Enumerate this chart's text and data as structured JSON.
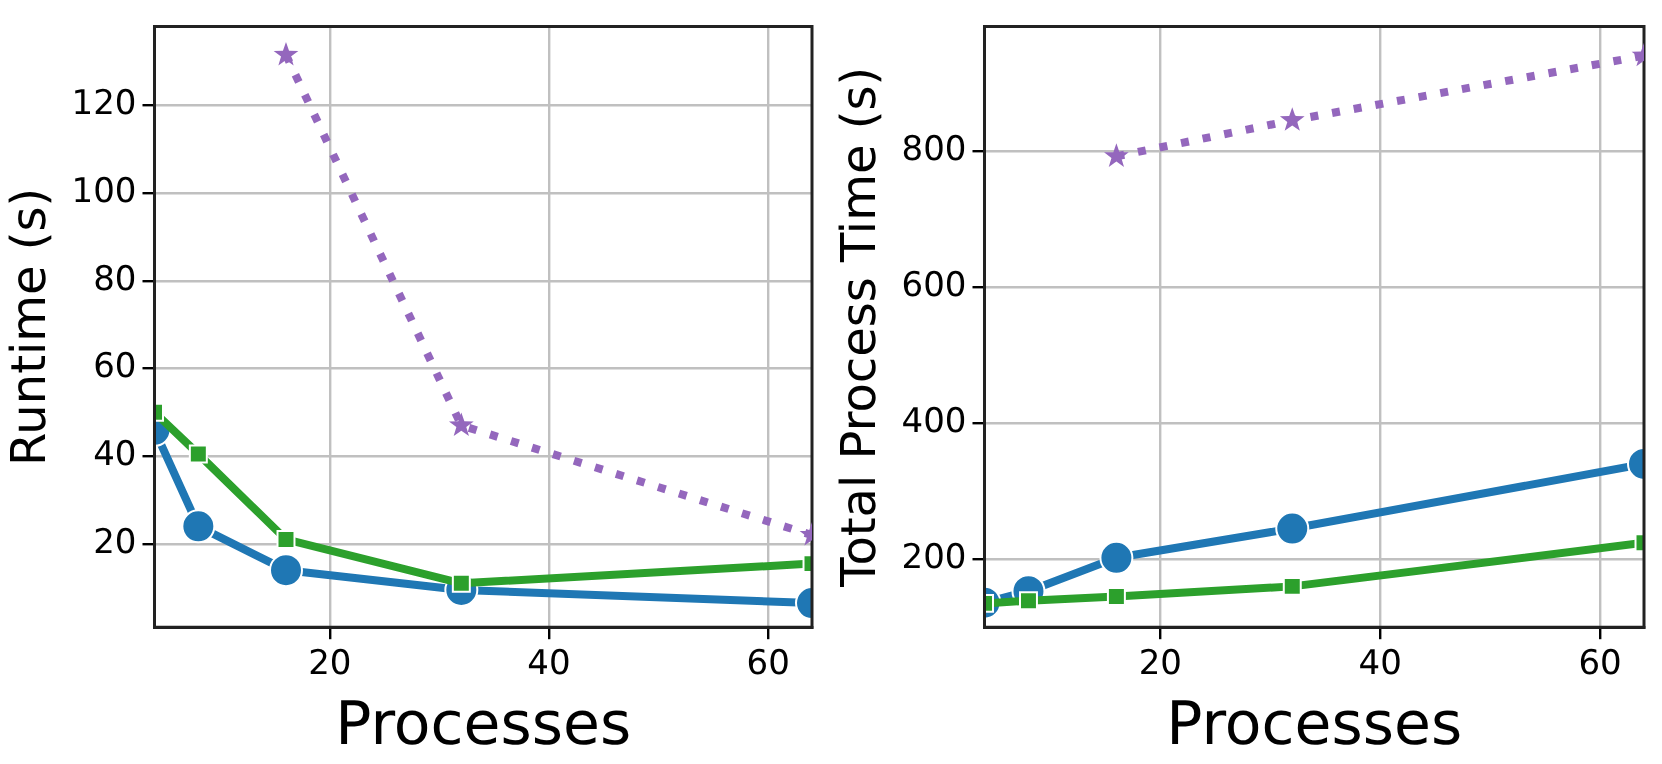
{
  "chart_data": [
    {
      "type": "line",
      "xlabel": "Processes",
      "ylabel": "Runtime (s)",
      "x": [
        4,
        8,
        16,
        32,
        64
      ],
      "xlim": [
        4,
        64
      ],
      "xticks": [
        20,
        40,
        60
      ],
      "ylim": [
        1,
        138
      ],
      "yticks": [
        20,
        40,
        60,
        80,
        100,
        120
      ],
      "grid": true,
      "legend": false,
      "series": [
        {
          "color": "#1f77b4",
          "marker": "circle",
          "line_style": "solid",
          "values": [
            46,
            24,
            14,
            9.5,
            6.5
          ]
        },
        {
          "color": "#2ca02c",
          "marker": "square",
          "line_style": "solid",
          "values": [
            50,
            40.5,
            21,
            11,
            15.5
          ]
        },
        {
          "color": "#9467bd",
          "marker": "star",
          "line_style": "dotted",
          "values": [
            null,
            null,
            131.5,
            47,
            22
          ]
        }
      ]
    },
    {
      "type": "line",
      "xlabel": "Processes",
      "ylabel": "Total Process Time (s)",
      "x": [
        4,
        8,
        16,
        32,
        64
      ],
      "xlim": [
        4,
        64
      ],
      "xticks": [
        20,
        40,
        60
      ],
      "ylim": [
        100,
        983
      ],
      "yticks": [
        200,
        400,
        600,
        800
      ],
      "grid": true,
      "legend": false,
      "series": [
        {
          "color": "#1f77b4",
          "marker": "circle",
          "line_style": "solid",
          "values": [
            136,
            153,
            202,
            245,
            340
          ]
        },
        {
          "color": "#2ca02c",
          "marker": "square",
          "line_style": "solid",
          "values": [
            135,
            139,
            145,
            160,
            224
          ]
        },
        {
          "color": "#9467bd",
          "marker": "star",
          "line_style": "dotted",
          "values": [
            null,
            null,
            792,
            845,
            940
          ]
        }
      ]
    }
  ]
}
